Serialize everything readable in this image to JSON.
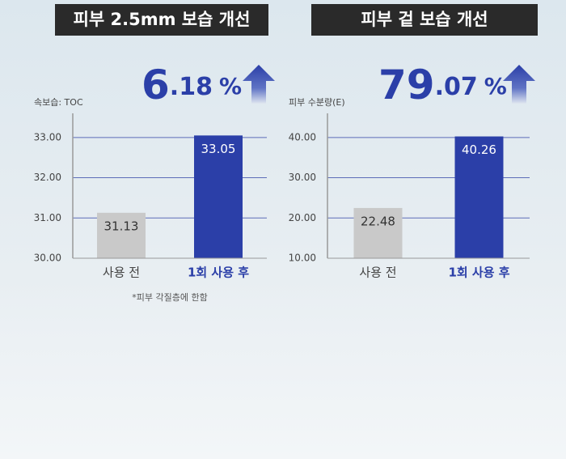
{
  "chart_data": [
    {
      "type": "bar",
      "title": "피부 2.5mm 보습 개선",
      "highlight": [
        "6",
        ".18",
        "%"
      ],
      "ylabel": "속보습: TOC",
      "categories": [
        "사용 전",
        "1회 사용 후"
      ],
      "values": [
        31.13,
        33.05
      ],
      "colors": [
        "#c9c9c9",
        "#2b3fa8"
      ],
      "ylim": [
        30,
        33.6
      ],
      "yticks": [
        {
          "value": 30,
          "label": "30.00"
        },
        {
          "value": 31,
          "label": "31.00"
        },
        {
          "value": 32,
          "label": "32.00"
        },
        {
          "value": 33,
          "label": "33.00"
        }
      ],
      "grid": true,
      "footnote": "*피부 각질층에 한함"
    },
    {
      "type": "bar",
      "title": "피부 겉 보습 개선",
      "highlight": [
        "79",
        ".07",
        "%"
      ],
      "ylabel": "피부 수분량(E)",
      "categories": [
        "사용 전",
        "1회 사용 후"
      ],
      "values": [
        22.48,
        40.26
      ],
      "colors": [
        "#c9c9c9",
        "#2b3fa8"
      ],
      "ylim": [
        10,
        46
      ],
      "yticks": [
        {
          "value": 10,
          "label": "10.00"
        },
        {
          "value": 20,
          "label": "20.00"
        },
        {
          "value": 30,
          "label": "30.00"
        },
        {
          "value": 40,
          "label": "40.00"
        }
      ],
      "grid": true
    }
  ]
}
